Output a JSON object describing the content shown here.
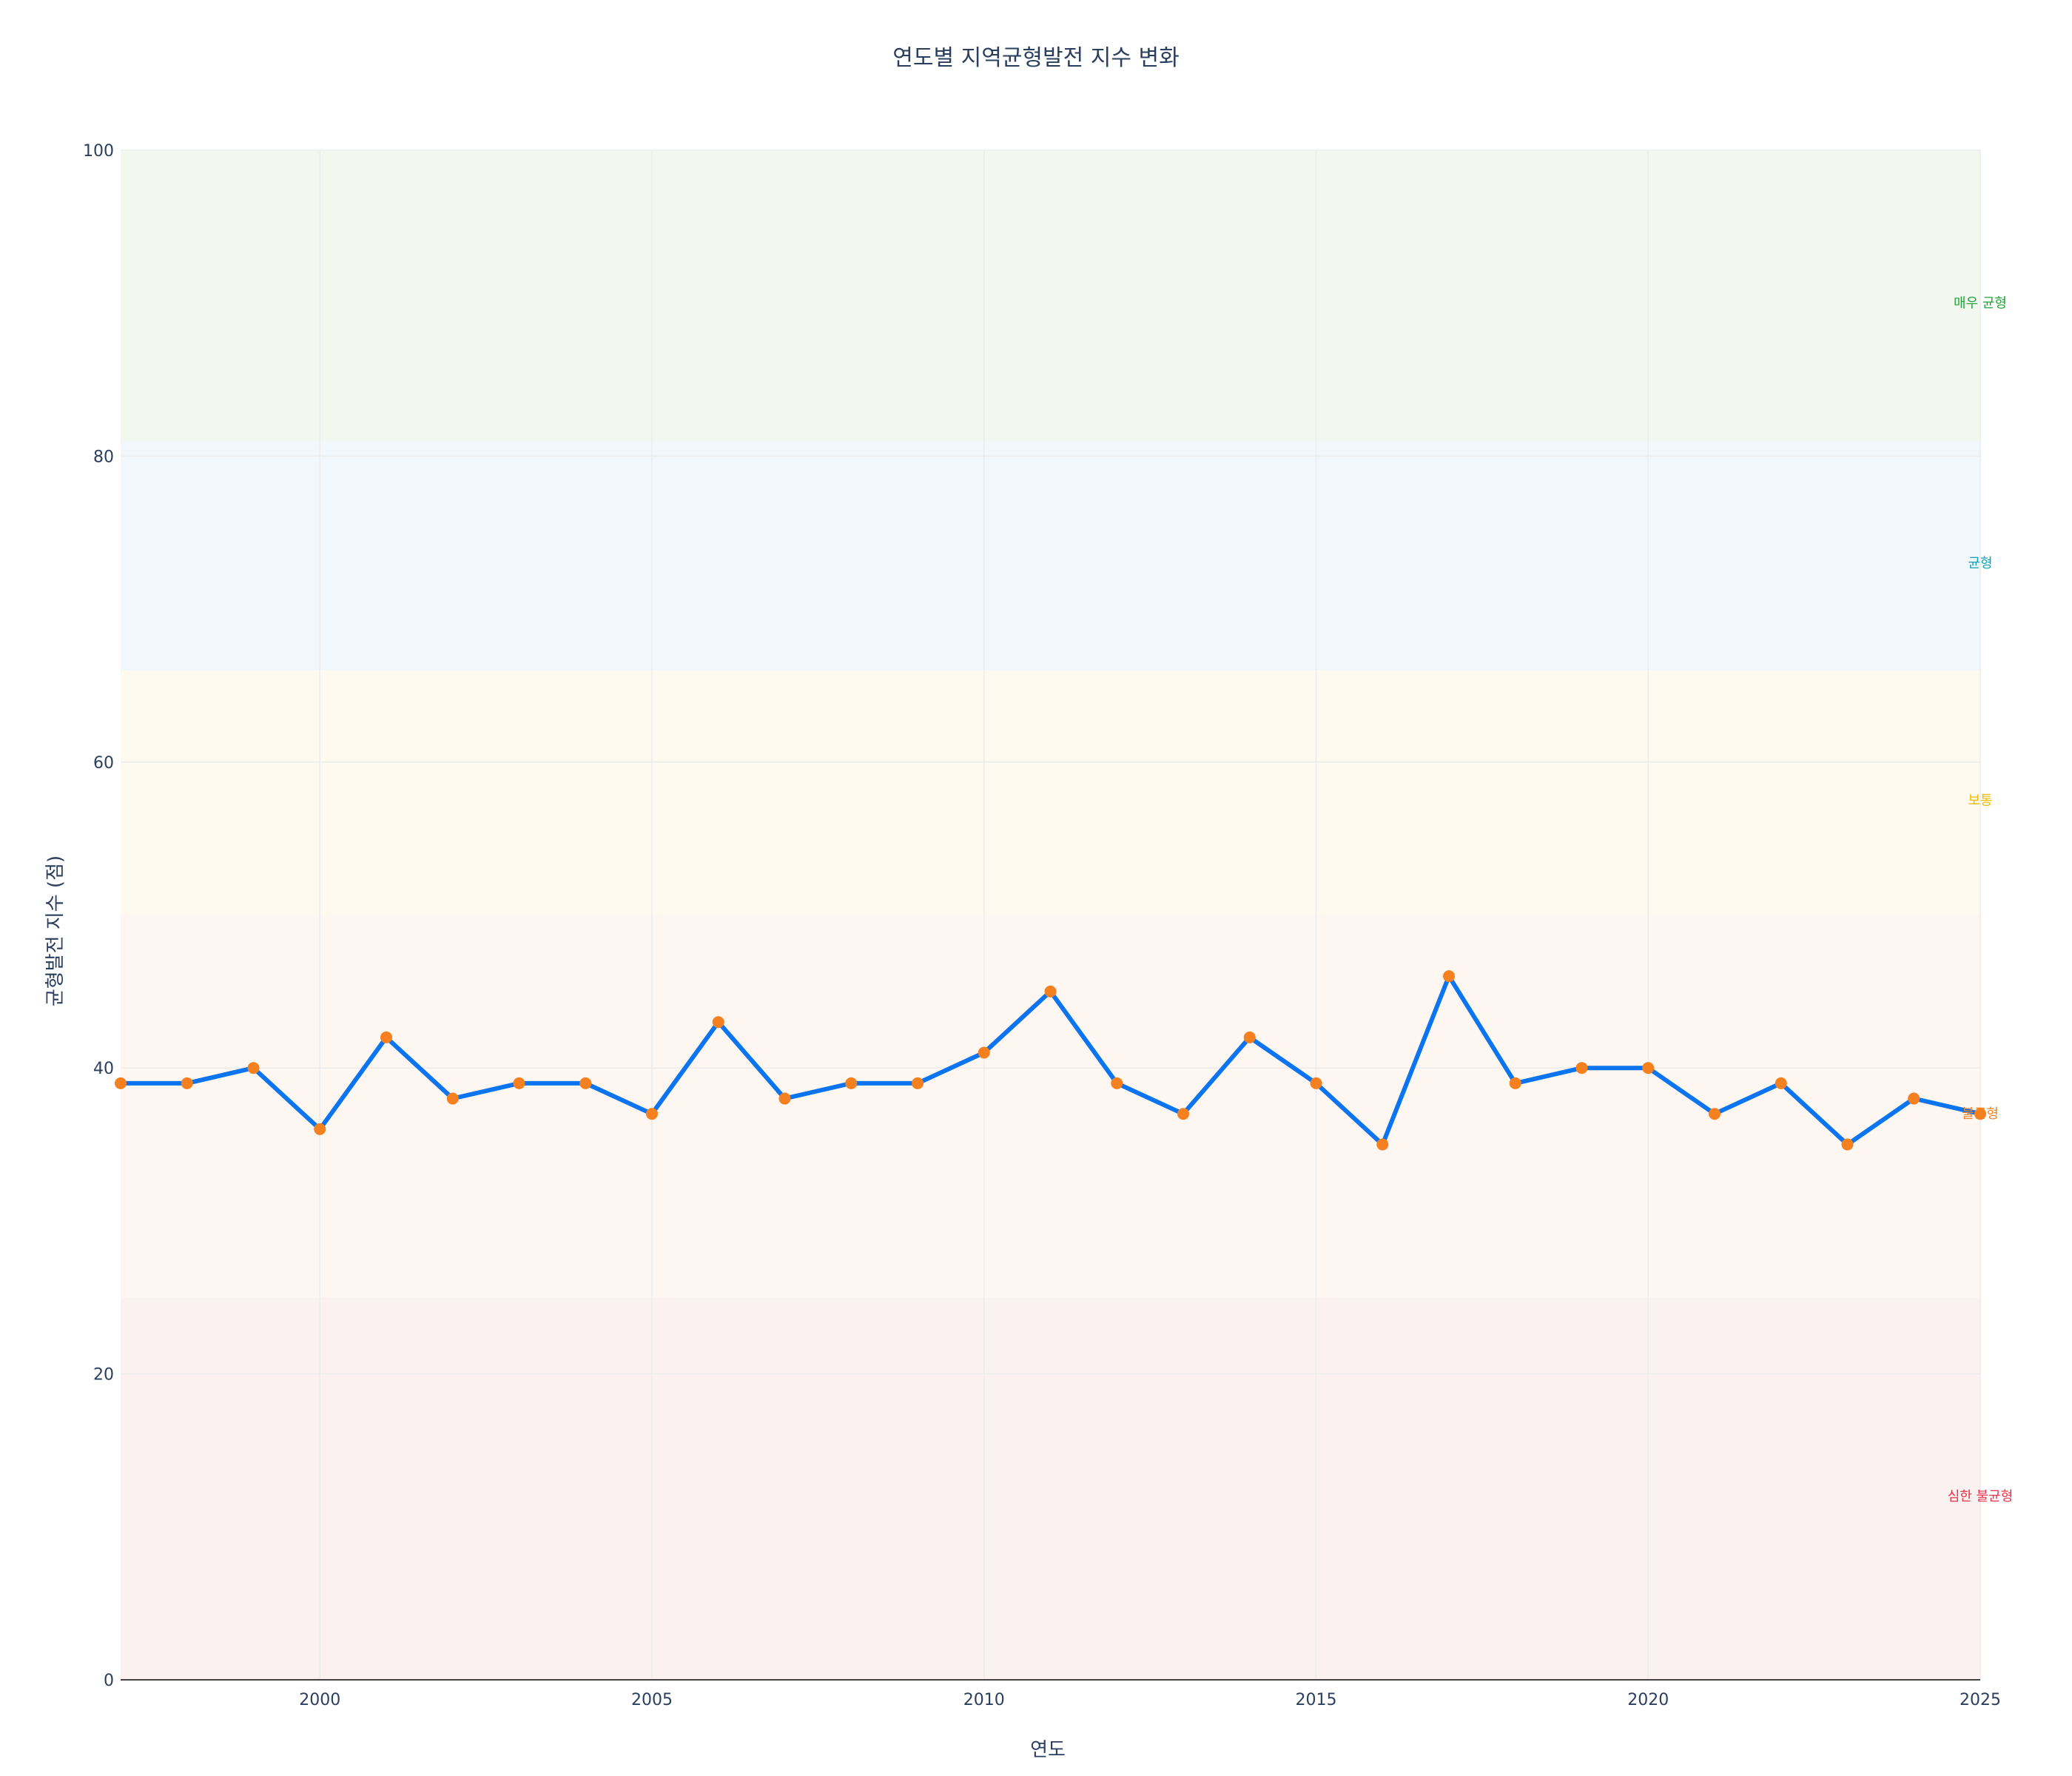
{
  "chart_data": {
    "type": "line",
    "title": "연도별 지역균형발전 지수 변화",
    "xlabel": "연도",
    "ylabel": "균형발전 지수 (점)",
    "xlim": [
      1997,
      2025
    ],
    "ylim": [
      0,
      100
    ],
    "x_ticks": [
      2000,
      2005,
      2010,
      2015,
      2020,
      2025
    ],
    "y_ticks": [
      0,
      20,
      40,
      60,
      80,
      100
    ],
    "grid": true,
    "line_color": "#0b74f0",
    "marker_color": "#f5801f",
    "x": [
      1997,
      1998,
      1999,
      2000,
      2001,
      2002,
      2003,
      2004,
      2005,
      2006,
      2007,
      2008,
      2009,
      2010,
      2011,
      2012,
      2013,
      2014,
      2015,
      2016,
      2017,
      2018,
      2019,
      2020,
      2021,
      2022,
      2023,
      2024,
      2025
    ],
    "values": [
      39,
      39,
      40,
      36,
      42,
      38,
      39,
      39,
      37,
      43,
      38,
      39,
      39,
      41,
      45,
      39,
      37,
      42,
      39,
      35,
      46,
      39,
      40,
      40,
      37,
      39,
      35,
      38,
      37
    ],
    "bands": [
      {
        "label": "심한 불균형",
        "from": 0,
        "to": 25,
        "color": "#e8334a",
        "fill": "#fbf1f1"
      },
      {
        "label": "불균형",
        "from": 25,
        "to": 50,
        "color": "#f5801f",
        "fill": "#fdf6f1"
      },
      {
        "label": "보통",
        "from": 50,
        "to": 66,
        "color": "#f3b800",
        "fill": "#fefaf0"
      },
      {
        "label": "균형",
        "from": 66,
        "to": 81,
        "color": "#14a0b4",
        "fill": "#f1f7fa"
      },
      {
        "label": "매우 균형",
        "from": 81,
        "to": 100,
        "color": "#22a33a",
        "fill": "#f2f7f0"
      }
    ]
  }
}
